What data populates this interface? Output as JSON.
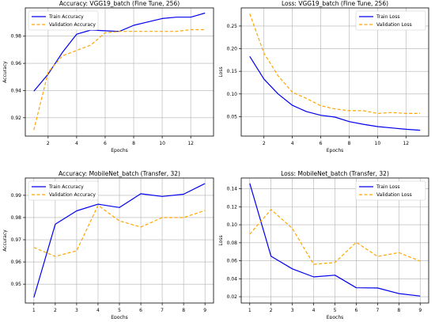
{
  "chart_data": [
    {
      "type": "line",
      "title": "Accuracy: VGG19_batch (Fine Tune, 256)",
      "xlabel": "Epochs",
      "ylabel": "Accuracy",
      "xlim": [
        0.4,
        13.6
      ],
      "ylim": [
        0.9065,
        1.0008
      ],
      "xticks": [
        2,
        4,
        6,
        8,
        10,
        12
      ],
      "yticks": [
        0.92,
        0.94,
        0.96,
        0.98
      ],
      "yfmt": 2,
      "grid": true,
      "legend": "upper-left",
      "x": [
        1,
        2,
        3,
        4,
        5,
        6,
        7,
        8,
        9,
        10,
        11,
        12,
        13
      ],
      "series": [
        {
          "name": "Train Accuracy",
          "color": "#0000ee",
          "style": "solid",
          "values": [
            0.9395,
            0.952,
            0.968,
            0.9815,
            0.9845,
            0.984,
            0.9835,
            0.988,
            0.9905,
            0.993,
            0.994,
            0.994,
            0.997
          ]
        },
        {
          "name": "Validation Accuracy",
          "color": "#ffa500",
          "style": "dashed",
          "values": [
            0.911,
            0.9535,
            0.9655,
            0.9695,
            0.9735,
            0.9825,
            0.9835,
            0.9835,
            0.9835,
            0.9835,
            0.9835,
            0.9848,
            0.9848
          ]
        }
      ]
    },
    {
      "type": "line",
      "title": "Loss: VGG19_batch (Fine Tune, 256)",
      "xlabel": "Epochs",
      "ylabel": "Loss",
      "xlim": [
        0.4,
        13.6
      ],
      "ylim": [
        0.007,
        0.29
      ],
      "xticks": [
        2,
        4,
        6,
        8,
        10,
        12
      ],
      "yticks": [
        0.05,
        0.1,
        0.15,
        0.2,
        0.25
      ],
      "yfmt": 2,
      "grid": true,
      "legend": "upper-right",
      "x": [
        1,
        2,
        3,
        4,
        5,
        6,
        7,
        8,
        9,
        10,
        11,
        12,
        13
      ],
      "series": [
        {
          "name": "Train Loss",
          "color": "#0000ee",
          "style": "solid",
          "values": [
            0.183,
            0.133,
            0.1,
            0.075,
            0.061,
            0.053,
            0.049,
            0.039,
            0.033,
            0.028,
            0.025,
            0.022,
            0.02
          ]
        },
        {
          "name": "Validation Loss",
          "color": "#ffa500",
          "style": "dashed",
          "values": [
            0.277,
            0.19,
            0.14,
            0.104,
            0.09,
            0.074,
            0.067,
            0.063,
            0.063,
            0.057,
            0.059,
            0.057,
            0.057
          ]
        }
      ]
    },
    {
      "type": "line",
      "title": "Accuracy: MobileNet_batch (Transfer, 32)",
      "xlabel": "Epochs",
      "ylabel": "Accuracy",
      "xlim": [
        0.6,
        9.4
      ],
      "ylim": [
        0.9415,
        0.9978
      ],
      "xticks": [
        1,
        2,
        3,
        4,
        5,
        6,
        7,
        8,
        9
      ],
      "yticks": [
        0.95,
        0.96,
        0.97,
        0.98,
        0.99
      ],
      "yfmt": 2,
      "grid": true,
      "legend": "upper-left",
      "x": [
        1,
        2,
        3,
        4,
        5,
        6,
        7,
        8,
        9
      ],
      "series": [
        {
          "name": "Train Accuracy",
          "color": "#0000ee",
          "style": "solid",
          "values": [
            0.944,
            0.977,
            0.983,
            0.986,
            0.9845,
            0.9907,
            0.9895,
            0.9905,
            0.9953
          ]
        },
        {
          "name": "Validation Accuracy",
          "color": "#ffa500",
          "style": "dashed",
          "values": [
            0.9665,
            0.9625,
            0.965,
            0.9855,
            0.9785,
            0.9757,
            0.98,
            0.98,
            0.9832
          ]
        }
      ]
    },
    {
      "type": "line",
      "title": "Loss: MobileNet_batch (Transfer, 32)",
      "xlabel": "Epochs",
      "ylabel": "Loss",
      "xlim": [
        0.6,
        9.4
      ],
      "ylim": [
        0.013,
        0.152
      ],
      "xticks": [
        1,
        2,
        3,
        4,
        5,
        6,
        7,
        8,
        9
      ],
      "yticks": [
        0.02,
        0.04,
        0.06,
        0.08,
        0.1,
        0.12,
        0.14
      ],
      "yfmt": 2,
      "grid": true,
      "legend": "upper-right",
      "x": [
        1,
        2,
        3,
        4,
        5,
        6,
        7,
        8,
        9
      ],
      "series": [
        {
          "name": "Train Loss",
          "color": "#0000ee",
          "style": "solid",
          "values": [
            0.146,
            0.065,
            0.051,
            0.042,
            0.044,
            0.03,
            0.0297,
            0.0235,
            0.0207
          ]
        },
        {
          "name": "Validation Loss",
          "color": "#ffa500",
          "style": "dashed",
          "values": [
            0.0895,
            0.117,
            0.096,
            0.056,
            0.058,
            0.0805,
            0.0648,
            0.069,
            0.0595
          ]
        }
      ]
    }
  ]
}
